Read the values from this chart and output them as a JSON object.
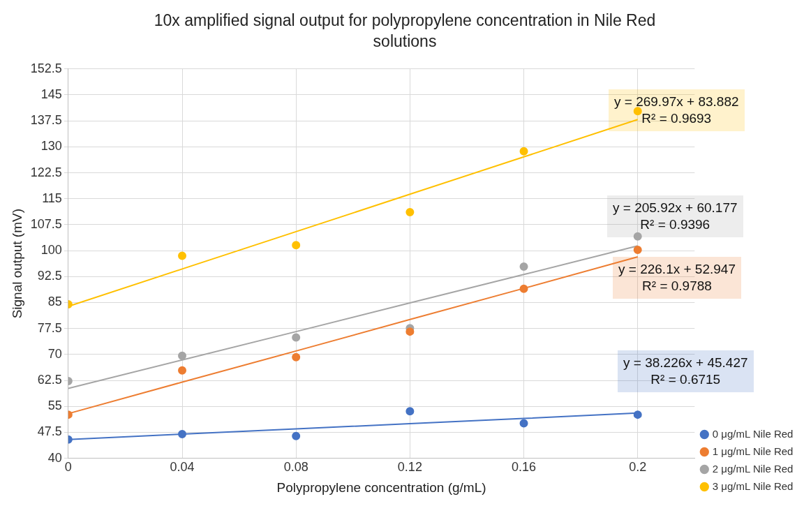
{
  "chart_data": {
    "type": "scatter",
    "title": "10x amplified signal output for polypropylene concentration in Nile Red solutions",
    "xlabel": "Polypropylene concentration (g/mL)",
    "ylabel": "Signal output (mV)",
    "x": [
      0,
      0.04,
      0.08,
      0.12,
      0.16,
      0.2
    ],
    "series": [
      {
        "name": "0 μg/mL Nile Red",
        "color": "#4472c4",
        "values": [
          45.4,
          47.0,
          46.4,
          53.6,
          50.1,
          52.6
        ]
      },
      {
        "name": "1 μg/mL Nile Red",
        "color": "#ed7d31",
        "values": [
          52.6,
          65.4,
          69.2,
          76.6,
          89.0,
          100.2
        ]
      },
      {
        "name": "2 μg/mL Nile Red",
        "color": "#a5a5a5",
        "values": [
          62.3,
          69.6,
          74.9,
          77.6,
          95.4,
          104.1
        ]
      },
      {
        "name": "3 μg/mL Nile Red",
        "color": "#ffc000",
        "values": [
          84.5,
          98.5,
          101.6,
          111.1,
          128.7,
          140.3
        ]
      },
      {
        "type": "line",
        "marker": "none",
        "color": "#4472c4",
        "values": [
          45.4,
          47.0,
          48.5,
          50.0,
          51.5,
          53.1
        ]
      },
      {
        "type": "line",
        "marker": "none",
        "color": "#ed7d31",
        "values": [
          52.9,
          62.0,
          71.0,
          80.1,
          89.1,
          98.2
        ]
      },
      {
        "type": "line",
        "marker": "none",
        "color": "#a5a5a5",
        "values": [
          60.2,
          68.4,
          76.6,
          84.9,
          93.1,
          101.4
        ]
      },
      {
        "type": "line",
        "marker": "none",
        "color": "#ffc000",
        "values": [
          83.9,
          94.7,
          105.5,
          116.3,
          127.1,
          137.9
        ]
      }
    ],
    "annotations": [
      "y = 38.226x + 45.427\nR² = 0.6715",
      "y = 226.1x + 52.947\nR² = 0.9788",
      "y = 205.92x + 60.177\nR² = 0.9396",
      "y = 269.97x + 83.882\nR² = 0.9693"
    ],
    "xlim": [
      0,
      0.22
    ],
    "xticks": [
      0,
      0.04,
      0.08,
      0.12,
      0.16,
      0.2
    ],
    "ylim": [
      40,
      152.5
    ],
    "yticks": [
      40,
      47.5,
      55,
      62.5,
      70,
      77.5,
      85,
      92.5,
      100,
      107.5,
      115,
      122.5,
      130,
      137.5,
      145,
      152.5
    ],
    "grid": true,
    "legend": "bottom right",
    "marker": "circle",
    "line_style": "solid"
  }
}
